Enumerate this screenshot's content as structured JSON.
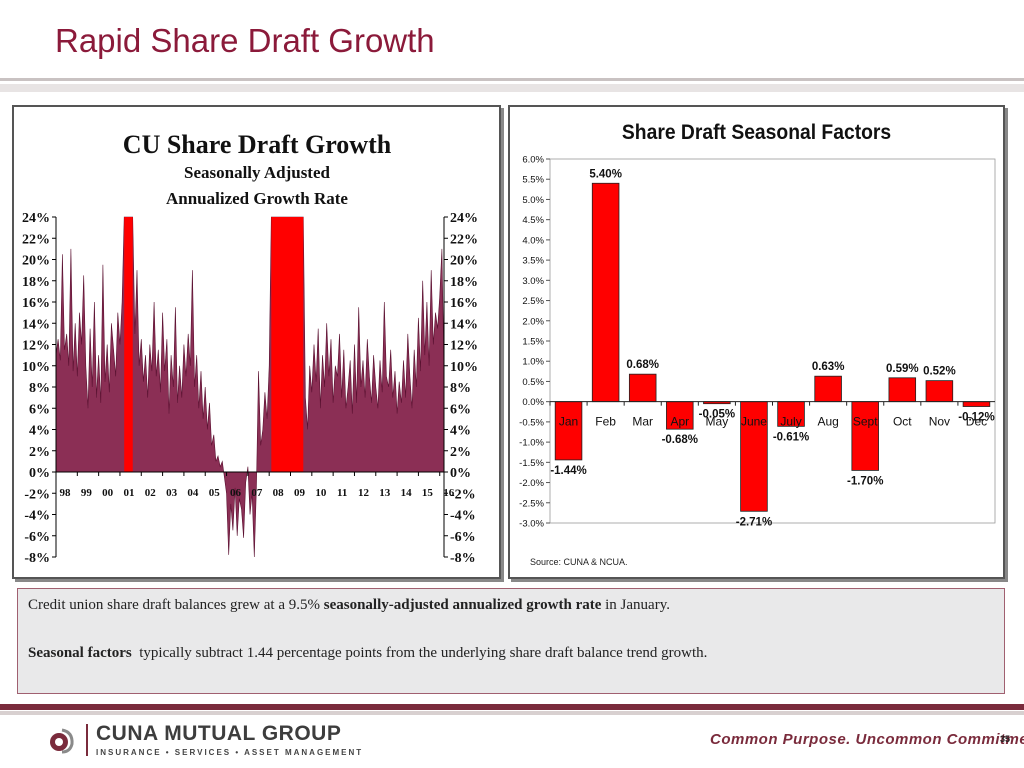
{
  "slide": {
    "title": "Rapid Share Draft Growth",
    "page_number": "35"
  },
  "chart_data": [
    {
      "type": "area",
      "title": "CU Share Draft Growth",
      "subtitle1": "Seasonally Adjusted",
      "subtitle2": "Annualized Growth Rate",
      "ylim": [
        -8,
        24
      ],
      "y_ticks": [
        "-8%",
        "-6%",
        "-4%",
        "-2%",
        "0%",
        "2%",
        "4%",
        "6%",
        "8%",
        "10%",
        "12%",
        "14%",
        "16%",
        "18%",
        "20%",
        "22%",
        "24%"
      ],
      "x_tick_labels": [
        "98",
        "99",
        "00",
        "01",
        "02",
        "03",
        "04",
        "05",
        "06",
        "07",
        "08",
        "09",
        "10",
        "11",
        "12",
        "13",
        "14",
        "15",
        "16"
      ],
      "series_color": "#8b2f55",
      "highlight_color": "#ff0000",
      "highlight_periods": [
        [
          2001.2,
          2001.6
        ],
        [
          2008.1,
          2009.6
        ]
      ],
      "series": [
        {
          "x": 1998.0,
          "y": 11.0
        },
        {
          "x": 1998.1,
          "y": 12.5
        },
        {
          "x": 1998.2,
          "y": 10.5
        },
        {
          "x": 1998.3,
          "y": 20.5
        },
        {
          "x": 1998.4,
          "y": 11.5
        },
        {
          "x": 1998.5,
          "y": 13.0
        },
        {
          "x": 1998.6,
          "y": 10.0
        },
        {
          "x": 1998.7,
          "y": 21.0
        },
        {
          "x": 1998.8,
          "y": 9.5
        },
        {
          "x": 1998.9,
          "y": 14.0
        },
        {
          "x": 1999.0,
          "y": 9.0
        },
        {
          "x": 1999.1,
          "y": 15.0
        },
        {
          "x": 1999.2,
          "y": 12.0
        },
        {
          "x": 1999.3,
          "y": 18.5
        },
        {
          "x": 1999.4,
          "y": 10.0
        },
        {
          "x": 1999.5,
          "y": 6.0
        },
        {
          "x": 1999.6,
          "y": 13.5
        },
        {
          "x": 1999.7,
          "y": 8.0
        },
        {
          "x": 1999.8,
          "y": 16.0
        },
        {
          "x": 1999.9,
          "y": 7.0
        },
        {
          "x": 2000.0,
          "y": 11.0
        },
        {
          "x": 2000.1,
          "y": 6.5
        },
        {
          "x": 2000.2,
          "y": 19.5
        },
        {
          "x": 2000.3,
          "y": 8.5
        },
        {
          "x": 2000.4,
          "y": 12.0
        },
        {
          "x": 2000.5,
          "y": 7.5
        },
        {
          "x": 2000.6,
          "y": 14.0
        },
        {
          "x": 2000.7,
          "y": 11.5
        },
        {
          "x": 2000.8,
          "y": 9.0
        },
        {
          "x": 2000.9,
          "y": 15.0
        },
        {
          "x": 2001.0,
          "y": 12.0
        },
        {
          "x": 2001.1,
          "y": 16.0
        },
        {
          "x": 2001.2,
          "y": 24.0
        },
        {
          "x": 2001.6,
          "y": 24.0
        },
        {
          "x": 2001.7,
          "y": 13.0
        },
        {
          "x": 2001.8,
          "y": 19.0
        },
        {
          "x": 2001.9,
          "y": 10.0
        },
        {
          "x": 2002.0,
          "y": 12.5
        },
        {
          "x": 2002.1,
          "y": 8.5
        },
        {
          "x": 2002.2,
          "y": 11.0
        },
        {
          "x": 2002.3,
          "y": 7.0
        },
        {
          "x": 2002.4,
          "y": 12.0
        },
        {
          "x": 2002.5,
          "y": 9.5
        },
        {
          "x": 2002.6,
          "y": 16.0
        },
        {
          "x": 2002.7,
          "y": 9.0
        },
        {
          "x": 2002.8,
          "y": 11.5
        },
        {
          "x": 2002.9,
          "y": 7.5
        },
        {
          "x": 2003.0,
          "y": 15.0
        },
        {
          "x": 2003.1,
          "y": 9.5
        },
        {
          "x": 2003.2,
          "y": 12.5
        },
        {
          "x": 2003.3,
          "y": 5.5
        },
        {
          "x": 2003.4,
          "y": 11.0
        },
        {
          "x": 2003.5,
          "y": 8.0
        },
        {
          "x": 2003.6,
          "y": 15.5
        },
        {
          "x": 2003.7,
          "y": 6.5
        },
        {
          "x": 2003.8,
          "y": 10.0
        },
        {
          "x": 2003.9,
          "y": 7.0
        },
        {
          "x": 2004.0,
          "y": 12.0
        },
        {
          "x": 2004.1,
          "y": 9.0
        },
        {
          "x": 2004.2,
          "y": 13.0
        },
        {
          "x": 2004.3,
          "y": 10.0
        },
        {
          "x": 2004.4,
          "y": 19.0
        },
        {
          "x": 2004.5,
          "y": 8.0
        },
        {
          "x": 2004.6,
          "y": 11.0
        },
        {
          "x": 2004.7,
          "y": 6.0
        },
        {
          "x": 2004.8,
          "y": 9.5
        },
        {
          "x": 2004.9,
          "y": 5.0
        },
        {
          "x": 2005.0,
          "y": 8.0
        },
        {
          "x": 2005.1,
          "y": 4.0
        },
        {
          "x": 2005.2,
          "y": 6.5
        },
        {
          "x": 2005.3,
          "y": 2.5
        },
        {
          "x": 2005.4,
          "y": 3.5
        },
        {
          "x": 2005.5,
          "y": 1.0
        },
        {
          "x": 2005.6,
          "y": 1.5
        },
        {
          "x": 2005.7,
          "y": 0.5
        },
        {
          "x": 2005.8,
          "y": 1.0
        },
        {
          "x": 2005.9,
          "y": -0.5
        },
        {
          "x": 2006.0,
          "y": -2.0
        },
        {
          "x": 2006.1,
          "y": -7.8
        },
        {
          "x": 2006.2,
          "y": -3.0
        },
        {
          "x": 2006.3,
          "y": -5.5
        },
        {
          "x": 2006.4,
          "y": -1.5
        },
        {
          "x": 2006.5,
          "y": -6.0
        },
        {
          "x": 2006.6,
          "y": -2.5
        },
        {
          "x": 2006.7,
          "y": -3.5
        },
        {
          "x": 2006.8,
          "y": -6.2
        },
        {
          "x": 2006.9,
          "y": -1.0
        },
        {
          "x": 2007.0,
          "y": 0.5
        },
        {
          "x": 2007.1,
          "y": -4.0
        },
        {
          "x": 2007.2,
          "y": -2.0
        },
        {
          "x": 2007.3,
          "y": -8.0
        },
        {
          "x": 2007.4,
          "y": -1.5
        },
        {
          "x": 2007.5,
          "y": 9.5
        },
        {
          "x": 2007.6,
          "y": 2.5
        },
        {
          "x": 2007.7,
          "y": 4.0
        },
        {
          "x": 2007.8,
          "y": 7.5
        },
        {
          "x": 2007.9,
          "y": 5.0
        },
        {
          "x": 2008.0,
          "y": 10.0
        },
        {
          "x": 2008.1,
          "y": 24.0
        },
        {
          "x": 2009.6,
          "y": 24.0
        },
        {
          "x": 2009.7,
          "y": 7.0
        },
        {
          "x": 2009.8,
          "y": 4.0
        },
        {
          "x": 2009.9,
          "y": 10.0
        },
        {
          "x": 2010.0,
          "y": 7.5
        },
        {
          "x": 2010.1,
          "y": 12.0
        },
        {
          "x": 2010.2,
          "y": 8.5
        },
        {
          "x": 2010.3,
          "y": 13.5
        },
        {
          "x": 2010.4,
          "y": 6.0
        },
        {
          "x": 2010.5,
          "y": 11.0
        },
        {
          "x": 2010.6,
          "y": 8.0
        },
        {
          "x": 2010.7,
          "y": 14.0
        },
        {
          "x": 2010.8,
          "y": 9.0
        },
        {
          "x": 2010.9,
          "y": 12.5
        },
        {
          "x": 2011.0,
          "y": 6.5
        },
        {
          "x": 2011.1,
          "y": 10.0
        },
        {
          "x": 2011.2,
          "y": 9.0
        },
        {
          "x": 2011.3,
          "y": 13.0
        },
        {
          "x": 2011.4,
          "y": 7.0
        },
        {
          "x": 2011.5,
          "y": 11.5
        },
        {
          "x": 2011.6,
          "y": 6.0
        },
        {
          "x": 2011.7,
          "y": 8.0
        },
        {
          "x": 2011.8,
          "y": 10.5
        },
        {
          "x": 2011.9,
          "y": 5.5
        },
        {
          "x": 2012.0,
          "y": 12.0
        },
        {
          "x": 2012.1,
          "y": 6.5
        },
        {
          "x": 2012.2,
          "y": 15.5
        },
        {
          "x": 2012.3,
          "y": 8.0
        },
        {
          "x": 2012.4,
          "y": 10.5
        },
        {
          "x": 2012.5,
          "y": 7.0
        },
        {
          "x": 2012.6,
          "y": 12.5
        },
        {
          "x": 2012.7,
          "y": 9.0
        },
        {
          "x": 2012.8,
          "y": 6.5
        },
        {
          "x": 2012.9,
          "y": 11.0
        },
        {
          "x": 2013.0,
          "y": 8.0
        },
        {
          "x": 2013.1,
          "y": 6.0
        },
        {
          "x": 2013.2,
          "y": 10.5
        },
        {
          "x": 2013.3,
          "y": 7.5
        },
        {
          "x": 2013.4,
          "y": 16.0
        },
        {
          "x": 2013.5,
          "y": 9.0
        },
        {
          "x": 2013.6,
          "y": 8.0
        },
        {
          "x": 2013.7,
          "y": 11.5
        },
        {
          "x": 2013.8,
          "y": 7.0
        },
        {
          "x": 2013.9,
          "y": 9.5
        },
        {
          "x": 2014.0,
          "y": 5.5
        },
        {
          "x": 2014.1,
          "y": 8.5
        },
        {
          "x": 2014.2,
          "y": 6.5
        },
        {
          "x": 2014.3,
          "y": 10.5
        },
        {
          "x": 2014.4,
          "y": 7.0
        },
        {
          "x": 2014.5,
          "y": 13.0
        },
        {
          "x": 2014.6,
          "y": 9.0
        },
        {
          "x": 2014.7,
          "y": 6.0
        },
        {
          "x": 2014.8,
          "y": 11.5
        },
        {
          "x": 2014.9,
          "y": 8.0
        },
        {
          "x": 2015.0,
          "y": 14.5
        },
        {
          "x": 2015.1,
          "y": 9.5
        },
        {
          "x": 2015.2,
          "y": 18.0
        },
        {
          "x": 2015.3,
          "y": 11.0
        },
        {
          "x": 2015.4,
          "y": 16.0
        },
        {
          "x": 2015.5,
          "y": 10.0
        },
        {
          "x": 2015.6,
          "y": 19.0
        },
        {
          "x": 2015.7,
          "y": 12.0
        },
        {
          "x": 2015.8,
          "y": 15.0
        },
        {
          "x": 2015.9,
          "y": 13.5
        },
        {
          "x": 2016.0,
          "y": 16.5
        },
        {
          "x": 2016.1,
          "y": 21.0
        },
        {
          "x": 2016.2,
          "y": 9.5
        }
      ]
    },
    {
      "type": "bar",
      "title": "Share Draft Seasonal Factors",
      "categories": [
        "Jan",
        "Feb",
        "Mar",
        "Apr",
        "May",
        "June",
        "July",
        "Aug",
        "Sept",
        "Oct",
        "Nov",
        "Dec"
      ],
      "values": [
        -1.44,
        5.4,
        0.68,
        -0.68,
        -0.05,
        -2.71,
        -0.61,
        0.63,
        -1.7,
        0.59,
        0.52,
        -0.12
      ],
      "data_labels": [
        "-1.44%",
        "5.40%",
        "0.68%",
        "-0.68%",
        "-0.05%",
        "-2.71%",
        "-0.61%",
        "0.63%",
        "-1.70%",
        "0.59%",
        "0.52%",
        "-0.12%"
      ],
      "ylim": [
        -3.0,
        6.0
      ],
      "y_ticks": [
        "-3.0%",
        "-2.5%",
        "-2.0%",
        "-1.5%",
        "-1.0%",
        "-0.5%",
        "0.0%",
        "0.5%",
        "1.0%",
        "1.5%",
        "2.0%",
        "2.5%",
        "3.0%",
        "3.5%",
        "4.0%",
        "4.5%",
        "5.0%",
        "5.5%",
        "6.0%"
      ],
      "bar_color": "#ff0000",
      "source": "Source: CUNA & NCUA."
    }
  ],
  "text_box": {
    "p1_before": "Credit union share draft balances grew at a 9.5% ",
    "p1_bold": "seasonally-adjusted annualized growth rate",
    "p1_after": " in January.",
    "p2_bold": "Seasonal factors",
    "p2_after": "  typically subtract 1.44 percentage points from the underlying share draft balance trend growth."
  },
  "footer": {
    "logo_name": "CUNA MUTUAL GROUP",
    "logo_sub": "INSURANCE • SERVICES • ASSET MANAGEMENT",
    "tagline": "Common Purpose. Uncommon Commitment."
  },
  "colors": {
    "title": "#8b1a3a",
    "brand": "#7a2b3c"
  }
}
